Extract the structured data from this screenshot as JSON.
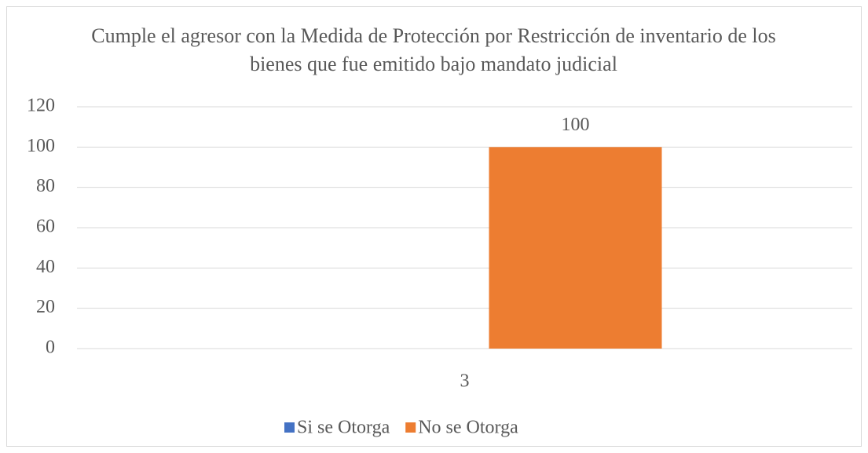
{
  "chart_data": {
    "type": "bar",
    "title": "Cumple el agresor con la Medida de Protección por Restricción de inventario de los bienes que fue emitido bajo mandato judicial",
    "categories": [
      "3"
    ],
    "series": [
      {
        "name": "Si se Otorga",
        "color": "#4472c4",
        "values": [
          0
        ],
        "data_labels": false
      },
      {
        "name": "No se Otorga",
        "color": "#ed7d31",
        "values": [
          100
        ],
        "data_labels": true
      }
    ],
    "ylim": [
      0,
      120
    ],
    "yticks": [
      0,
      20,
      40,
      60,
      80,
      100,
      120
    ],
    "grid": true,
    "legend": "bottom"
  }
}
